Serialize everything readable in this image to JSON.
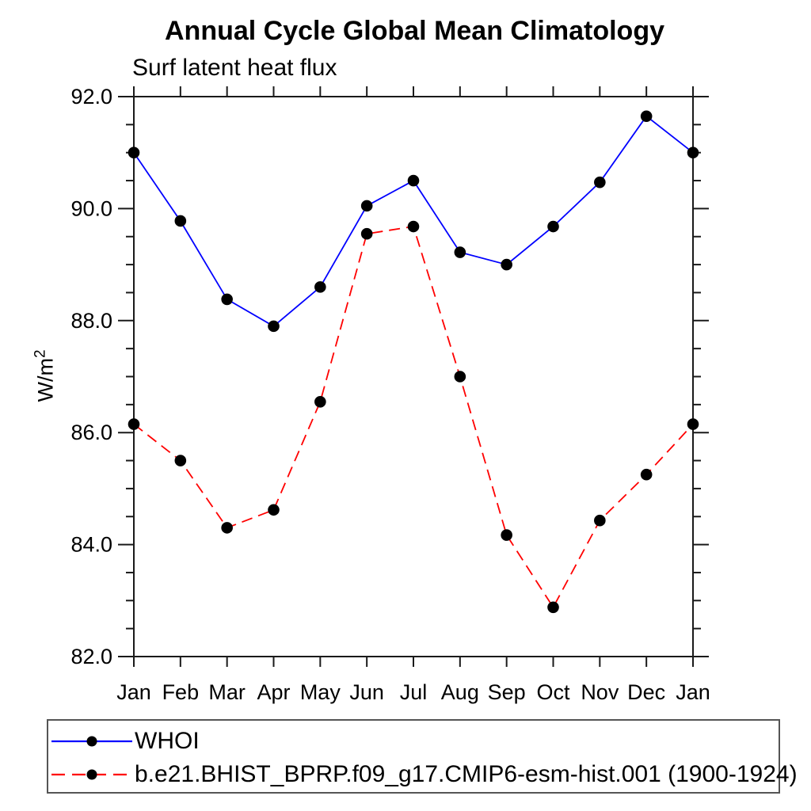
{
  "page": {
    "background": "#ffffff",
    "axis_color": "#1a1a1a",
    "legend_border_color": "#555555"
  },
  "chart_data": {
    "type": "line",
    "title": "Annual Cycle Global Mean Climatology",
    "subtitle": "Surf latent heat flux",
    "ylabel": {
      "base": "W/m",
      "sup": "2",
      "full": "W/m²"
    },
    "categories": [
      "Jan",
      "Feb",
      "Mar",
      "Apr",
      "May",
      "Jun",
      "Jul",
      "Aug",
      "Sep",
      "Oct",
      "Nov",
      "Dec",
      "Jan"
    ],
    "ylim": [
      82.0,
      92.0
    ],
    "ytick_major_values": [
      82,
      84,
      86,
      88,
      90,
      92
    ],
    "ytick_major_labels": [
      "82.0",
      "84.0",
      "86.0",
      "88.0",
      "90.0",
      "92.0"
    ],
    "ytick_minor_step": 0.5,
    "grid": false,
    "legend_position": "bottom-left-box",
    "marker": "filled-black-circle",
    "marker_color": "#000000",
    "series": [
      {
        "name": "WHOI",
        "color": "#0000ff",
        "line_style": "solid",
        "values": [
          91.0,
          89.78,
          88.38,
          87.9,
          88.6,
          90.05,
          90.5,
          89.22,
          89.0,
          89.68,
          90.47,
          91.65,
          91.0
        ]
      },
      {
        "name": "b.e21.BHIST_BPRP.f09_g17.CMIP6-esm-hist.001 (1900-1924)",
        "color": "#ff0000",
        "line_style": "dashed",
        "values": [
          86.15,
          85.5,
          84.3,
          84.62,
          86.55,
          89.55,
          89.68,
          87.0,
          84.17,
          82.88,
          84.43,
          85.25,
          86.15
        ]
      }
    ]
  }
}
